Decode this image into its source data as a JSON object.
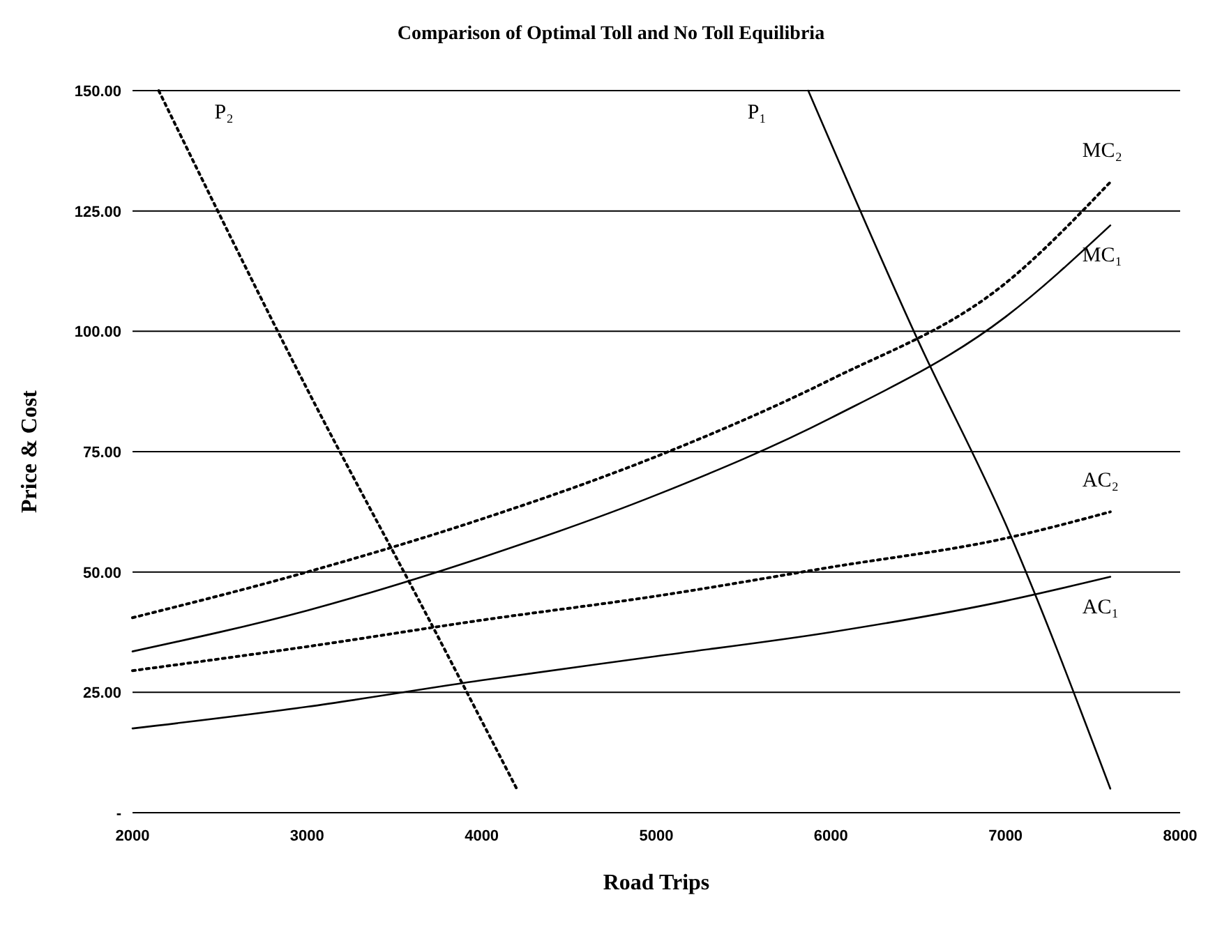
{
  "chart_data": {
    "type": "line",
    "title": "Comparison of Optimal Toll and No Toll Equilibria",
    "xlabel": "Road Trips",
    "ylabel": "Price & Cost",
    "xlim": [
      2000,
      8000
    ],
    "xticks": [
      2000,
      3000,
      4000,
      5000,
      6000,
      7000,
      8000
    ],
    "ylim": [
      0,
      150
    ],
    "yticks": [
      {
        "value": 0,
        "label": "-"
      },
      {
        "value": 25,
        "label": "25.00"
      },
      {
        "value": 50,
        "label": "50.00"
      },
      {
        "value": 75,
        "label": "75.00"
      },
      {
        "value": 100,
        "label": "100.00"
      },
      {
        "value": 125,
        "label": "125.00"
      },
      {
        "value": 150,
        "label": "150.00"
      }
    ],
    "grid": "y",
    "marker": "none",
    "series": [
      {
        "name": "P₂",
        "color": "#000000",
        "line_style": "dotted",
        "x": [
          2150,
          3000,
          3700,
          4200
        ],
        "values": [
          150,
          88,
          40,
          5
        ]
      },
      {
        "name": "P₁",
        "color": "#000000",
        "line_style": "solid",
        "x": [
          5870,
          6500,
          7000,
          7600
        ],
        "values": [
          150,
          98,
          60,
          5
        ]
      },
      {
        "name": "MC₂",
        "color": "#000000",
        "line_style": "dotted",
        "x": [
          2000,
          3000,
          4000,
          5000,
          6000,
          7000,
          7600
        ],
        "values": [
          40.5,
          50,
          61,
          74,
          90,
          110,
          131
        ]
      },
      {
        "name": "MC₁",
        "color": "#000000",
        "line_style": "solid",
        "x": [
          2000,
          3000,
          4000,
          5000,
          6000,
          7000,
          7600
        ],
        "values": [
          33.5,
          42,
          53,
          66,
          82,
          103,
          122
        ]
      },
      {
        "name": "AC₂",
        "color": "#000000",
        "line_style": "dotted",
        "x": [
          2000,
          3000,
          4000,
          5000,
          6000,
          7000,
          7600
        ],
        "values": [
          29.5,
          34.5,
          40,
          45,
          51,
          57,
          62.5
        ]
      },
      {
        "name": "AC₁",
        "color": "#000000",
        "line_style": "solid",
        "x": [
          2000,
          3000,
          4000,
          5000,
          6000,
          7000,
          7600
        ],
        "values": [
          17.5,
          22,
          27.5,
          32.5,
          37.5,
          44,
          49
        ]
      }
    ]
  }
}
